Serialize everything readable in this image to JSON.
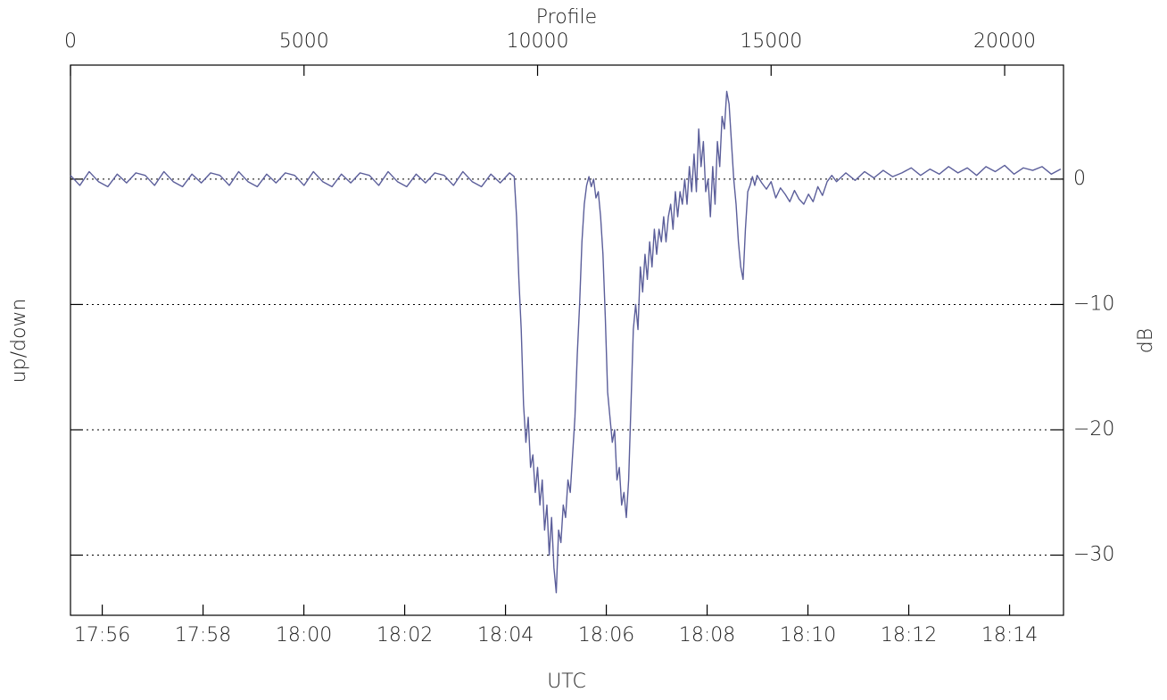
{
  "chart_data": {
    "type": "line",
    "xlabel": "Profile",
    "x2label": "UTC",
    "ylabel": "up/down",
    "y2label": "dB",
    "color": "#5b5e9a",
    "grid": true,
    "xlim": [
      0,
      21260
    ],
    "xticks": [
      0,
      5000,
      10000,
      15000,
      20000
    ],
    "x2lim": [
      1075.37,
      1095.07
    ],
    "x2ticks": [
      {
        "value": 1076,
        "label": "17:56"
      },
      {
        "value": 1078,
        "label": "17:58"
      },
      {
        "value": 1080,
        "label": "18:00"
      },
      {
        "value": 1082,
        "label": "18:02"
      },
      {
        "value": 1084,
        "label": "18:04"
      },
      {
        "value": 1086,
        "label": "18:06"
      },
      {
        "value": 1088,
        "label": "18:08"
      },
      {
        "value": 1090,
        "label": "18:10"
      },
      {
        "value": 1092,
        "label": "18:12"
      },
      {
        "value": 1094,
        "label": "18:14"
      }
    ],
    "ylim": [
      -34.8,
      9.1
    ],
    "yticks": [
      0,
      {
        "value": -10,
        "label": "−10"
      },
      {
        "value": -20,
        "label": "−20"
      },
      {
        "value": -30,
        "label": "−30"
      }
    ],
    "x": [
      0,
      200,
      400,
      600,
      800,
      1000,
      1200,
      1400,
      1600,
      1800,
      2000,
      2200,
      2400,
      2600,
      2800,
      3000,
      3200,
      3400,
      3600,
      3800,
      4000,
      4200,
      4400,
      4600,
      4800,
      5000,
      5200,
      5400,
      5600,
      5800,
      6000,
      6200,
      6400,
      6600,
      6800,
      7000,
      7200,
      7400,
      7600,
      7800,
      8000,
      8200,
      8400,
      8600,
      8800,
      9000,
      9200,
      9400,
      9500,
      9550,
      9600,
      9650,
      9700,
      9750,
      9800,
      9850,
      9900,
      9950,
      10000,
      10050,
      10100,
      10150,
      10200,
      10250,
      10300,
      10350,
      10400,
      10450,
      10500,
      10550,
      10600,
      10650,
      10700,
      10750,
      10800,
      10850,
      10900,
      10950,
      11000,
      11050,
      11100,
      11150,
      11200,
      11250,
      11300,
      11350,
      11400,
      11450,
      11500,
      11550,
      11600,
      11650,
      11700,
      11750,
      11800,
      11850,
      11900,
      11950,
      12000,
      12050,
      12100,
      12150,
      12200,
      12250,
      12300,
      12350,
      12400,
      12450,
      12500,
      12550,
      12600,
      12650,
      12700,
      12750,
      12800,
      12850,
      12900,
      12950,
      13000,
      13050,
      13100,
      13150,
      13200,
      13250,
      13300,
      13350,
      13400,
      13450,
      13500,
      13550,
      13600,
      13650,
      13700,
      13750,
      13800,
      13850,
      13900,
      13950,
      14000,
      14050,
      14100,
      14150,
      14200,
      14250,
      14300,
      14350,
      14400,
      14450,
      14500,
      14550,
      14600,
      14650,
      14700,
      14800,
      14900,
      15000,
      15100,
      15200,
      15300,
      15400,
      15500,
      15600,
      15700,
      15800,
      15900,
      16000,
      16100,
      16200,
      16300,
      16400,
      16600,
      16800,
      17000,
      17200,
      17400,
      17600,
      17800,
      18000,
      18200,
      18400,
      18600,
      18800,
      19000,
      19200,
      19400,
      19600,
      19800,
      20000,
      20200,
      20400,
      20600,
      20800,
      21000,
      21200
    ],
    "values": [
      0.3,
      -0.5,
      0.6,
      -0.2,
      -0.6,
      0.4,
      -0.3,
      0.5,
      0.3,
      -0.5,
      0.6,
      -0.2,
      -0.6,
      0.4,
      -0.3,
      0.5,
      0.3,
      -0.5,
      0.6,
      -0.2,
      -0.6,
      0.4,
      -0.3,
      0.5,
      0.3,
      -0.5,
      0.6,
      -0.2,
      -0.6,
      0.4,
      -0.3,
      0.5,
      0.3,
      -0.5,
      0.6,
      -0.2,
      -0.6,
      0.4,
      -0.3,
      0.5,
      0.3,
      -0.5,
      0.6,
      -0.2,
      -0.6,
      0.4,
      -0.3,
      0.5,
      0.2,
      -3,
      -8,
      -12,
      -18,
      -21,
      -19,
      -23,
      -22,
      -25,
      -23,
      -26,
      -24,
      -28,
      -26,
      -30,
      -27,
      -31,
      -33,
      -28,
      -29,
      -26,
      -27,
      -24,
      -25,
      -22,
      -19,
      -14,
      -10,
      -5,
      -2,
      -0.5,
      0.2,
      -0.6,
      0,
      -1.5,
      -1,
      -3,
      -6,
      -11,
      -17,
      -19,
      -21,
      -20,
      -24,
      -23,
      -26,
      -25,
      -27,
      -24,
      -18,
      -12,
      -10,
      -12,
      -7,
      -9,
      -6,
      -8,
      -5,
      -7,
      -4,
      -6,
      -4,
      -5,
      -3,
      -5,
      -3,
      -2,
      -4,
      -1,
      -3,
      -1,
      -2,
      0,
      -2,
      1,
      -1,
      2,
      -1,
      4,
      1,
      3,
      -1,
      0,
      -3,
      1,
      -2,
      3,
      1,
      5,
      4,
      7,
      6,
      3,
      0,
      -2,
      -5,
      -7,
      -8,
      -4,
      -1,
      -0.5,
      0.2,
      -0.5,
      0.3,
      -0.3,
      -0.8,
      -0.2,
      -1.5,
      -0.7,
      -1.2,
      -1.8,
      -0.9,
      -1.6,
      -2,
      -1.2,
      -1.8,
      -0.6,
      -1.3,
      -0.2,
      0.3,
      -0.2,
      0.5,
      -0.1,
      0.6,
      0.1,
      0.7,
      0.2,
      0.5,
      0.9,
      0.3,
      0.8,
      0.4,
      1.0,
      0.5,
      0.9,
      0.3,
      1.0,
      0.6,
      1.1,
      0.4,
      0.9,
      0.7,
      1.0,
      0.4,
      0.8
    ]
  }
}
